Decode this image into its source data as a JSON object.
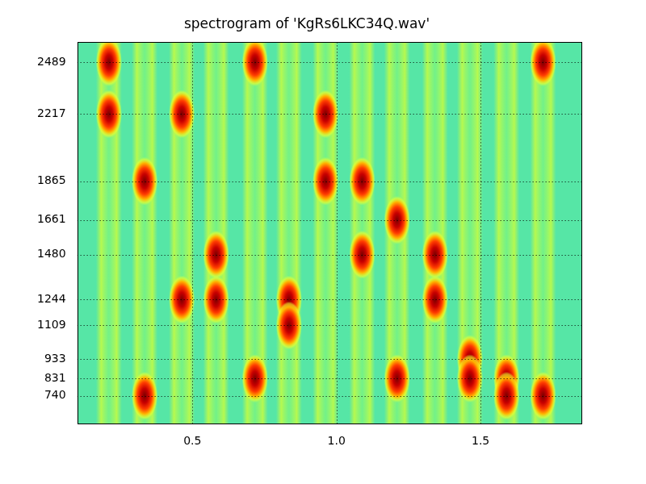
{
  "chart_data": {
    "type": "heatmap",
    "title": "spectrogram of 'KgRs6LKC34Q.wav'",
    "x": [
      0.21,
      0.334,
      0.463,
      0.582,
      0.717,
      0.835,
      0.962,
      1.089,
      1.21,
      1.342,
      1.463,
      1.59,
      1.717
    ],
    "frequencies": [
      [
        2489,
        2217
      ],
      [
        1865,
        740
      ],
      [
        2217,
        1244
      ],
      [
        1480,
        1244
      ],
      [
        2489,
        831
      ],
      [
        1244,
        1109
      ],
      [
        2217,
        1865
      ],
      [
        1865,
        1480
      ],
      [
        1661,
        831
      ],
      [
        1480,
        1244
      ],
      [
        933,
        831
      ],
      [
        831,
        740
      ],
      [
        2489,
        740
      ]
    ],
    "duration": 0.09,
    "xlim": [
      0.1,
      1.85
    ],
    "xticks": [
      {
        "value": 0.5,
        "label": "0.5"
      },
      {
        "value": 1,
        "label": "1.0"
      },
      {
        "value": 1.5,
        "label": "1.5"
      }
    ],
    "ylim": [
      594,
      2593
    ],
    "yticks": [
      740,
      831,
      933,
      1109,
      1244,
      1480,
      1661,
      1865,
      2217,
      2489
    ],
    "grid": true
  }
}
